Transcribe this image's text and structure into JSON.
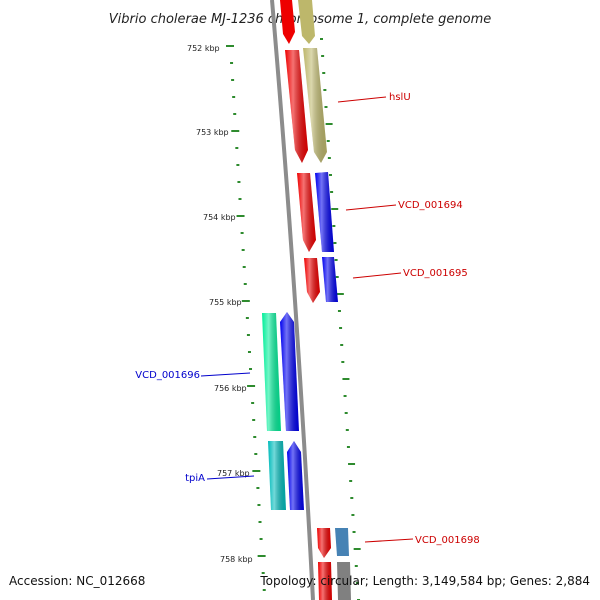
{
  "title": "Vibrio cholerae MJ-1236 chromosome 1, complete genome",
  "accession": "Accession: NC_012668",
  "summary": "Topology: circular; Length: 3,149,584 bp; Genes: 2,884",
  "colors": {
    "backbone": "#8c8c8c",
    "tick": "#2e8b2e",
    "label_forward": "#cc0000",
    "label_reverse": "#0000cc"
  },
  "scale": {
    "kbp_ticks": [
      "752 kbp",
      "753 kbp",
      "754 kbp",
      "755 kbp",
      "756 kbp",
      "757 kbp",
      "758 kbp"
    ]
  },
  "gene_labels": [
    {
      "name": "hslU",
      "strand": "forward"
    },
    {
      "name": "VCD_001694",
      "strand": "forward"
    },
    {
      "name": "VCD_001695",
      "strand": "forward"
    },
    {
      "name": "VCD_001696",
      "strand": "reverse"
    },
    {
      "name": "tpiA",
      "strand": "reverse"
    },
    {
      "name": "VCD_001698",
      "strand": "forward"
    }
  ],
  "feature_colors": {
    "red": "#ee0000",
    "khaki": "#bdb76b",
    "blue": "#0000ee",
    "spring_green": "#00ee99",
    "cyan": "#00bbbb",
    "steel_blue": "#4682b4",
    "gray": "#808080"
  }
}
